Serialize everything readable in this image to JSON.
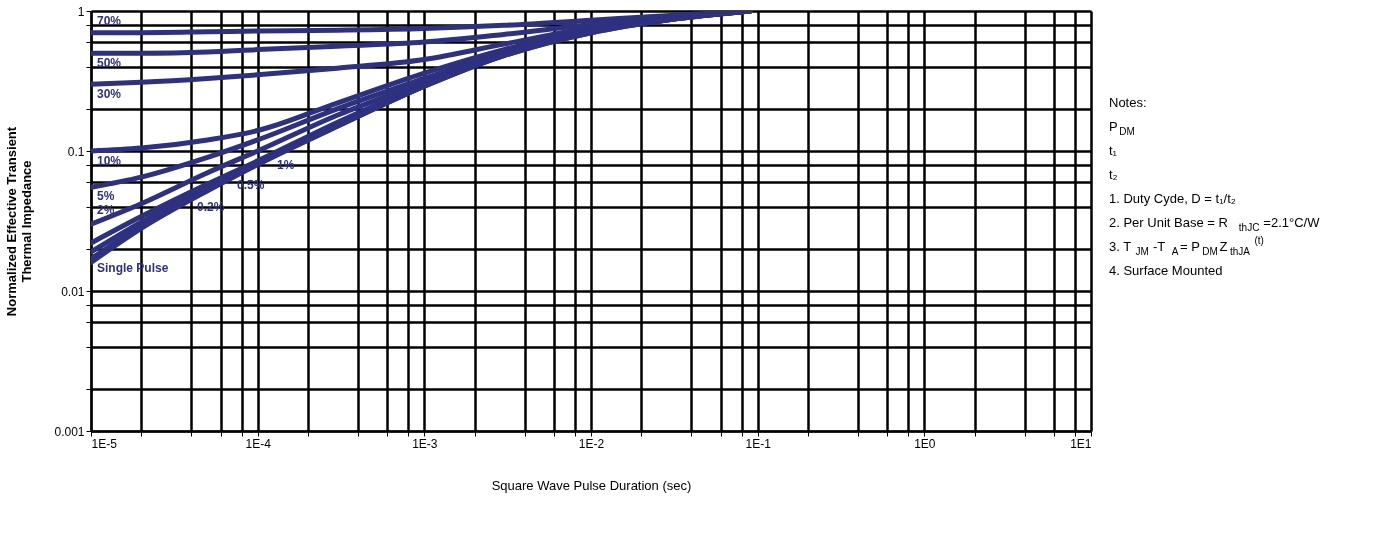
{
  "chart_data": {
    "type": "line",
    "xlabel": "Square Wave Pulse Duration (sec)",
    "ylabel": "Normalized Effective Transient\nThermal Impedance",
    "log": "xy",
    "grid": true,
    "legend": false,
    "x": [
      1e-05,
      2e-05,
      5e-05,
      0.0001,
      0.0003,
      0.001,
      0.003,
      0.01,
      0.03,
      0.09
    ],
    "series": [
      {
        "name": "70%",
        "color": "#2e3180",
        "values": [
          0.7,
          0.7,
          0.71,
          0.72,
          0.73,
          0.75,
          0.79,
          0.86,
          0.93,
          1
        ]
      },
      {
        "name": "50%",
        "color": "#2e3180",
        "values": [
          0.5,
          0.5,
          0.51,
          0.53,
          0.56,
          0.6,
          0.68,
          0.8,
          0.9,
          1
        ]
      },
      {
        "name": "30%",
        "color": "#2e3180",
        "values": [
          0.3,
          0.31,
          0.33,
          0.35,
          0.39,
          0.45,
          0.58,
          0.76,
          0.89,
          1
        ]
      },
      {
        "name": "10%",
        "color": "#2e3180",
        "values": [
          0.1,
          0.105,
          0.12,
          0.14,
          0.22,
          0.36,
          0.53,
          0.73,
          0.88,
          1
        ]
      },
      {
        "name": "5%",
        "color": "#2e3180",
        "values": [
          0.055,
          0.065,
          0.09,
          0.12,
          0.2,
          0.33,
          0.51,
          0.72,
          0.88,
          1
        ]
      },
      {
        "name": "2%",
        "color": "#2e3180",
        "values": [
          0.03,
          0.042,
          0.07,
          0.1,
          0.18,
          0.31,
          0.5,
          0.72,
          0.88,
          1
        ]
      },
      {
        "name": "1%",
        "color": "#2e3180",
        "values": [
          0.022,
          0.034,
          0.058,
          0.085,
          0.16,
          0.3,
          0.49,
          0.71,
          0.87,
          1
        ]
      },
      {
        "name": "0.5%",
        "color": "#2e3180",
        "values": [
          0.019,
          0.031,
          0.055,
          0.083,
          0.155,
          0.295,
          0.49,
          0.71,
          0.87,
          1
        ]
      },
      {
        "name": "0.2%",
        "color": "#2e3180",
        "values": [
          0.017,
          0.029,
          0.053,
          0.081,
          0.15,
          0.29,
          0.48,
          0.7,
          0.87,
          1
        ]
      },
      {
        "name": "Single Pulse",
        "color": "#2e3180",
        "values": [
          0.016,
          0.028,
          0.052,
          0.08,
          0.15,
          0.29,
          0.48,
          0.7,
          0.87,
          1
        ]
      }
    ],
    "xlim": [
      1e-05,
      10
    ],
    "ylim": [
      0.001,
      1
    ],
    "xticks": [
      {
        "value": 1e-05,
        "label": "1E-5"
      },
      {
        "value": 2e-05,
        "label": null
      },
      {
        "value": 4e-05,
        "label": null
      },
      {
        "value": 6e-05,
        "label": null
      },
      {
        "value": 8e-05,
        "label": null
      },
      {
        "value": 0.0001,
        "label": "1E-4"
      },
      {
        "value": 0.0002,
        "label": null
      },
      {
        "value": 0.0004,
        "label": null
      },
      {
        "value": 0.0006,
        "label": null
      },
      {
        "value": 0.0008,
        "label": null
      },
      {
        "value": 0.001,
        "label": "1E-3"
      },
      {
        "value": 0.002,
        "label": null
      },
      {
        "value": 0.004,
        "label": null
      },
      {
        "value": 0.006,
        "label": null
      },
      {
        "value": 0.008,
        "label": null
      },
      {
        "value": 0.01,
        "label": "1E-2"
      },
      {
        "value": 0.02,
        "label": null
      },
      {
        "value": 0.04,
        "label": null
      },
      {
        "value": 0.06,
        "label": null
      },
      {
        "value": 0.08,
        "label": null
      },
      {
        "value": 0.1,
        "label": "1E-1"
      },
      {
        "value": 0.2,
        "label": null
      },
      {
        "value": 0.4,
        "label": null
      },
      {
        "value": 0.6,
        "label": null
      },
      {
        "value": 0.8,
        "label": null
      },
      {
        "value": 1,
        "label": "1E0"
      },
      {
        "value": 2,
        "label": null
      },
      {
        "value": 4,
        "label": null
      },
      {
        "value": 6,
        "label": null
      },
      {
        "value": 8,
        "label": null
      },
      {
        "value": 10,
        "label": "1E1"
      }
    ],
    "yticks": [
      0.001,
      {
        "value": 0.002,
        "label": null
      },
      {
        "value": 0.004,
        "label": null
      },
      {
        "value": 0.006,
        "label": null
      },
      {
        "value": 0.008,
        "label": null
      },
      0.01,
      {
        "value": 0.02,
        "label": null
      },
      {
        "value": 0.04,
        "label": null
      },
      {
        "value": 0.06,
        "label": null
      },
      {
        "value": 0.08,
        "label": null
      },
      0.1,
      {
        "value": 0.2,
        "label": null
      },
      {
        "value": 0.4,
        "label": null
      },
      {
        "value": 0.6,
        "label": null
      },
      {
        "value": 0.8,
        "label": null
      },
      1
    ],
    "annotations": [
      "Notes:",
      "P$_{DM}$",
      "t₁",
      "t₂",
      "1. Duty Cyde, D = t₁/t₂",
      "2. Per Unit Base = R$_{thJC}$=2.1°C/W",
      "3. T$_{JM}$ -T$_{A}$= P$_{DM}$Z$_{thJA}$$^{(t)}$",
      "4. Surface Mounted"
    ]
  }
}
